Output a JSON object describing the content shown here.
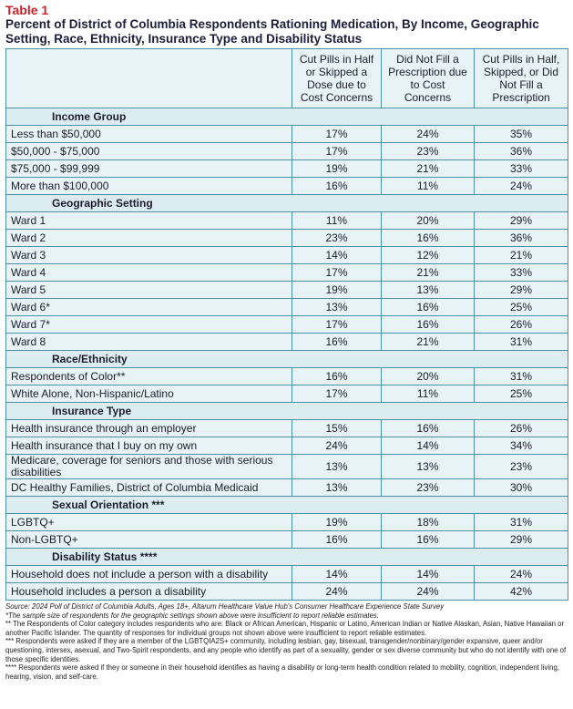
{
  "label": "Table 1",
  "title": "Percent of District of Columbia Respondents Rationing Medication, By Income, Geographic Setting, Race, Ethnicity, Insurance Type and Disability Status",
  "table": {
    "columns": [
      "Cut Pills in Half or Skipped a Dose due to Cost Concerns",
      "Did Not Fill a Prescription due to Cost Concerns",
      "Cut Pills in Half, Skipped, or Did Not Fill a Prescription"
    ],
    "sections": [
      {
        "name": "Income Group",
        "rows": [
          [
            "Less than $50,000",
            "17%",
            "24%",
            "35%"
          ],
          [
            "$50,000 - $75,000",
            "17%",
            "23%",
            "36%"
          ],
          [
            "$75,000 - $99,999",
            "19%",
            "21%",
            "33%"
          ],
          [
            "More than $100,000",
            "16%",
            "11%",
            "24%"
          ]
        ]
      },
      {
        "name": "Geographic Setting",
        "rows": [
          [
            "Ward 1",
            "11%",
            "20%",
            "29%"
          ],
          [
            "Ward 2",
            "23%",
            "16%",
            "36%"
          ],
          [
            "Ward 3",
            "14%",
            "12%",
            "21%"
          ],
          [
            "Ward 4",
            "17%",
            "21%",
            "33%"
          ],
          [
            "Ward 5",
            "19%",
            "13%",
            "29%"
          ],
          [
            "Ward 6*",
            "13%",
            "16%",
            "25%"
          ],
          [
            "Ward 7*",
            "17%",
            "16%",
            "26%"
          ],
          [
            "Ward 8",
            "16%",
            "21%",
            "31%"
          ]
        ]
      },
      {
        "name": "Race/Ethnicity",
        "rows": [
          [
            "Respondents of Color**",
            "16%",
            "20%",
            "31%"
          ],
          [
            "White Alone, Non-Hispanic/Latino",
            "17%",
            "11%",
            "25%"
          ]
        ]
      },
      {
        "name": "Insurance Type",
        "rows": [
          [
            "Health insurance through an employer",
            "15%",
            "16%",
            "26%"
          ],
          [
            "Health insurance that I buy on my own",
            "24%",
            "14%",
            "34%"
          ],
          [
            "Medicare, coverage for seniors and those with serious disabilities",
            "13%",
            "13%",
            "23%"
          ],
          [
            "DC Healthy Families, District of Columbia Medicaid",
            "13%",
            "23%",
            "30%"
          ]
        ]
      },
      {
        "name": "Sexual Orientation ***",
        "rows": [
          [
            "LGBTQ+",
            "19%",
            "18%",
            "31%"
          ],
          [
            "Non-LGBTQ+",
            "16%",
            "16%",
            "29%"
          ]
        ]
      },
      {
        "name": "Disability Status ****",
        "rows": [
          [
            "Household does not include a person with a disability",
            "14%",
            "14%",
            "24%"
          ],
          [
            "Household includes a person a disability",
            "24%",
            "24%",
            "42%"
          ]
        ]
      }
    ]
  },
  "notes": [
    "Source: 2024 Poll of District of Columbia Adults, Ages 18+, Altarum Healthcare Value Hub's Consumer Healthcare Experience State Survey",
    "*The sample size of respondents for the geographic settings shown above were insufficient to report reliable estimates.",
    "** The Respondents of Color category includes respondents who are: Black or African American, Hispanic or Latino, American Indian or Native Alaskan, Asian, Native Hawaiian or another Pacific Islander. The quantity of responses for individual groups not shown above were insufficient to report reliable estimates.",
    "*** Respondents were asked if they are a member of the LGBTQIA2S+ community, including lesbian, gay, bisexual, transgender/nonbinary/gender expansive, queer and/or questioning, intersex, asexual, and Two-Spirit respondents, and any people who identify as part of a sexuality, gender or sex diverse community but who do not identify with one of those specific identities.",
    "**** Respondents were asked if they or someone in their household identifies as having a disability or long-term health condition related to mobility, cognition, independent living, hearing, vision, and self-care."
  ]
}
